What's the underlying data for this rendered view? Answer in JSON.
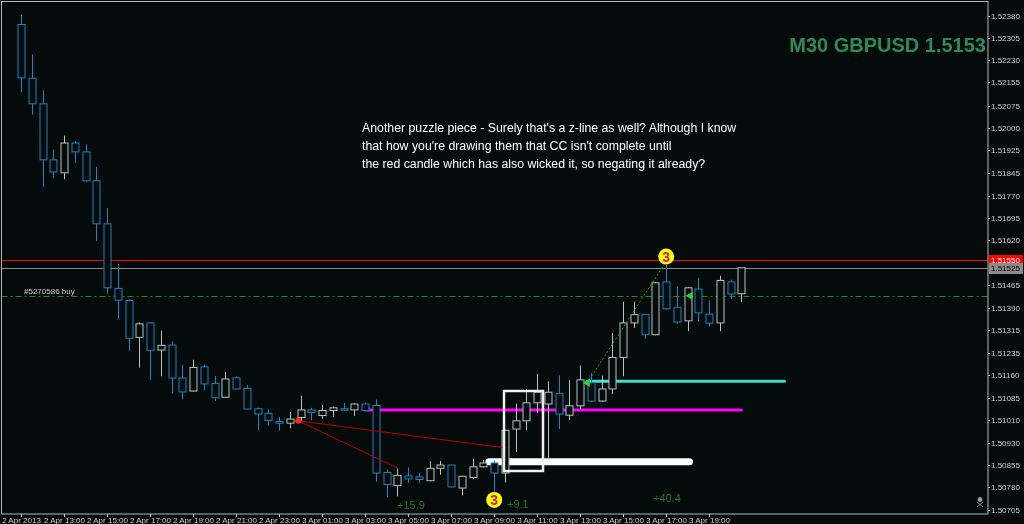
{
  "chart_data": {
    "type": "candlestick",
    "title": "M30 GBPUSD 1.5153",
    "series": [
      {
        "color": "#b4c4c4",
        "x": [
          "2013-04-02T13:00",
          "2013-04-02T16:30",
          "2013-04-02T17:30",
          "2013-04-02T19:00",
          "2013-04-02T20:30",
          "2013-04-02T23:30",
          "2013-04-03T00:00",
          "2013-04-03T01:00",
          "2013-04-03T01:30",
          "2013-04-03T02:30",
          "2013-04-03T04:30",
          "2013-04-03T06:00",
          "2013-04-03T06:30",
          "2013-04-03T07:30",
          "2013-04-03T08:00",
          "2013-04-03T08:30",
          "2013-04-03T09:30",
          "2013-04-03T10:00",
          "2013-04-03T10:30",
          "2013-04-03T11:00",
          "2013-04-03T11:30",
          "2013-04-03T12:30",
          "2013-04-03T13:00",
          "2013-04-03T14:00",
          "2013-04-03T14:30",
          "2013-04-03T15:00",
          "2013-04-03T15:30",
          "2013-04-03T16:30",
          "2013-04-03T18:00",
          "2013-04-03T19:30",
          "2013-04-03T20:30"
        ],
        "ohlc": [
          [
            1.51847,
            1.51973,
            1.51825,
            1.51948
          ],
          [
            1.51289,
            1.5134,
            1.51186,
            1.51335
          ],
          [
            1.51246,
            1.51312,
            1.51157,
            1.51262
          ],
          [
            1.51107,
            1.51213,
            1.51105,
            1.51187
          ],
          [
            1.51086,
            1.51172,
            1.51084,
            1.51148
          ],
          [
            1.50998,
            1.51036,
            1.50981,
            1.51012
          ],
          [
            1.51017,
            1.51091,
            1.51002,
            1.51043
          ],
          [
            1.51024,
            1.5106,
            1.51013,
            1.51041
          ],
          [
            1.51041,
            1.51055,
            1.5102,
            1.5105
          ],
          [
            1.51043,
            1.51065,
            1.51023,
            1.51063
          ],
          [
            1.50787,
            1.50845,
            1.5075,
            1.50821
          ],
          [
            1.50803,
            1.50869,
            1.50801,
            1.50845
          ],
          [
            1.50845,
            1.5087,
            1.50823,
            1.50856
          ],
          [
            1.50778,
            1.5082,
            1.50753,
            1.50818
          ],
          [
            1.50814,
            1.50877,
            1.50807,
            1.5085
          ],
          [
            1.5085,
            1.50874,
            1.50848,
            1.50863
          ],
          [
            1.50829,
            1.50976,
            1.50797,
            1.50974
          ],
          [
            1.50978,
            1.51064,
            1.509,
            1.51006
          ],
          [
            1.51006,
            1.51114,
            1.50974,
            1.51067
          ],
          [
            1.51067,
            1.51165,
            1.51033,
            1.51103
          ],
          [
            1.51063,
            1.5114,
            1.50874,
            1.51103
          ],
          [
            1.51025,
            1.51145,
            1.51009,
            1.51057
          ],
          [
            1.51057,
            1.51194,
            1.51046,
            1.51145
          ],
          [
            1.51073,
            1.51159,
            1.51071,
            1.51114
          ],
          [
            1.51114,
            1.51304,
            1.51097,
            1.51221
          ],
          [
            1.51221,
            1.5141,
            1.51157,
            1.51338
          ],
          [
            1.51338,
            1.5141,
            1.51321,
            1.51366
          ],
          [
            1.51298,
            1.51476,
            1.51296,
            1.51474
          ],
          [
            1.51345,
            1.5146,
            1.5131,
            1.51457
          ],
          [
            1.51338,
            1.51498,
            1.5131,
            1.51482
          ],
          [
            1.51437,
            1.51525,
            1.51409,
            1.51525
          ]
        ]
      },
      {
        "color": "#1a86c2",
        "x": [
          "2013-04-02T11:00",
          "2013-04-02T11:30",
          "2013-04-02T12:00",
          "2013-04-02T12:30",
          "2013-04-02T13:30",
          "2013-04-02T14:00",
          "2013-04-02T14:30",
          "2013-04-02T15:00",
          "2013-04-02T15:30",
          "2013-04-02T16:00",
          "2013-04-02T17:00",
          "2013-04-02T18:00",
          "2013-04-02T18:30",
          "2013-04-02T19:30",
          "2013-04-02T20:00",
          "2013-04-02T21:00",
          "2013-04-02T21:30",
          "2013-04-02T22:00",
          "2013-04-02T22:30",
          "2013-04-02T23:00",
          "2013-04-03T00:30",
          "2013-04-03T02:00",
          "2013-04-03T03:00",
          "2013-04-03T03:30",
          "2013-04-03T04:00",
          "2013-04-03T05:00",
          "2013-04-03T05:30",
          "2013-04-03T07:00",
          "2013-04-03T09:00",
          "2013-04-03T12:00",
          "2013-04-03T13:30",
          "2013-04-03T16:00",
          "2013-04-03T17:00",
          "2013-04-03T17:30",
          "2013-04-03T18:30",
          "2013-04-03T19:00",
          "2013-04-03T20:00"
        ],
        "ohlc": [
          [
            1.5235,
            1.52383,
            1.5212,
            1.52169
          ],
          [
            1.52168,
            1.52248,
            1.52044,
            1.52081
          ],
          [
            1.52081,
            1.52127,
            1.51798,
            1.51891
          ],
          [
            1.51891,
            1.51926,
            1.51828,
            1.5185
          ],
          [
            1.51948,
            1.51955,
            1.51879,
            1.51918
          ],
          [
            1.51918,
            1.51943,
            1.51815,
            1.5182
          ],
          [
            1.5182,
            1.51867,
            1.51615,
            1.51674
          ],
          [
            1.51674,
            1.51728,
            1.51437,
            1.51457
          ],
          [
            1.51455,
            1.51539,
            1.51352,
            1.51415
          ],
          [
            1.51414,
            1.51419,
            1.51242,
            1.51286
          ],
          [
            1.51338,
            1.5134,
            1.51145,
            1.51245
          ],
          [
            1.51263,
            1.51275,
            1.51099,
            1.51151
          ],
          [
            1.51151,
            1.51196,
            1.51079,
            1.51104
          ],
          [
            1.51189,
            1.51196,
            1.51109,
            1.51131
          ],
          [
            1.51133,
            1.51158,
            1.51073,
            1.51084
          ],
          [
            1.51152,
            1.51157,
            1.51113,
            1.51114
          ],
          [
            1.51116,
            1.51128,
            1.51045,
            1.51046
          ],
          [
            1.51047,
            1.51051,
            1.50974,
            1.51029
          ],
          [
            1.51031,
            1.51045,
            1.5099,
            1.51007
          ],
          [
            1.51004,
            1.51019,
            1.50973,
            1.50998
          ],
          [
            1.51043,
            1.5105,
            1.51007,
            1.51034
          ],
          [
            1.51047,
            1.51067,
            1.51041,
            1.51042
          ],
          [
            1.51063,
            1.51068,
            1.5104,
            1.51041
          ],
          [
            1.51058,
            1.51078,
            1.50799,
            1.50829
          ],
          [
            1.50831,
            1.50841,
            1.50747,
            1.5079
          ],
          [
            1.50819,
            1.50848,
            1.50795,
            1.50809
          ],
          [
            1.50816,
            1.50829,
            1.50794,
            1.50807
          ],
          [
            1.50856,
            1.50858,
            1.5078,
            1.50782
          ],
          [
            1.50863,
            1.50872,
            1.50765,
            1.50829
          ],
          [
            1.51099,
            1.5116,
            1.50978,
            1.51029
          ],
          [
            1.51135,
            1.51168,
            1.51069,
            1.51073
          ],
          [
            1.51367,
            1.51369,
            1.51284,
            1.51298
          ],
          [
            1.51477,
            1.51536,
            1.51383,
            1.51386
          ],
          [
            1.51391,
            1.51462,
            1.51335,
            1.51341
          ],
          [
            1.51453,
            1.51491,
            1.51343,
            1.51372
          ],
          [
            1.51368,
            1.51414,
            1.51326,
            1.51337
          ],
          [
            1.51477,
            1.51485,
            1.51419,
            1.51436
          ]
        ]
      },
      {
        "type": "line",
        "color": "#ff00ff",
        "x": [
          "2013-04-03T03:00",
          "2013-04-03T20:30"
        ],
        "values": [
          1.51043,
          1.51043
        ]
      },
      {
        "type": "line",
        "color": "#40e0d0",
        "x": [
          "2013-04-03T13:20",
          "2013-04-03T22:30"
        ],
        "values": [
          1.5114,
          1.5114
        ]
      },
      {
        "type": "line",
        "color": "#ffffff",
        "x": [
          "2013-04-03T08:45",
          "2013-04-03T18:05"
        ],
        "values": [
          1.50867,
          1.50867
        ]
      },
      {
        "type": "line",
        "color": "#c00000",
        "x": [
          "2013-04-02T23:53",
          "2013-04-03T09:32"
        ],
        "values": [
          1.51006,
          1.50914
        ]
      },
      {
        "type": "line",
        "color": "#c00000",
        "x": [
          "2013-04-02T23:53",
          "2013-04-03T04:32"
        ],
        "values": [
          1.51006,
          1.50845
        ]
      },
      {
        "type": "line",
        "color": "#1f9f1f",
        "line_style": "dotted",
        "x": [
          "2013-04-03T13:20",
          "2013-04-03T16:54"
        ],
        "values": [
          1.51135,
          1.51536
        ]
      },
      {
        "type": "scatter",
        "color": "#ff2020",
        "marker": "circle",
        "x": [
          "2013-04-02T23:53"
        ],
        "values": [
          1.51006
        ]
      },
      {
        "type": "scatter",
        "color": "#2ecc40",
        "marker": "triangle",
        "x": [
          "2013-04-03T13:20",
          "2013-04-03T18:07"
        ],
        "values": [
          1.51135,
          1.5143
        ]
      }
    ],
    "xlim": [
      "2013-04-02T10:05",
      "2013-04-04T07:58"
    ],
    "xticks": [
      {
        "value": "2013-04-02T11:00",
        "label": "2 Apr 2013"
      },
      {
        "value": "2013-04-02T13:00",
        "label": "2 Apr 13:00"
      },
      {
        "value": "2013-04-02T15:00",
        "label": "2 Apr 15:00"
      },
      {
        "value": "2013-04-02T17:00",
        "label": "2 Apr 17:00"
      },
      {
        "value": "2013-04-02T19:00",
        "label": "2 Apr 19:00"
      },
      {
        "value": "2013-04-02T21:00",
        "label": "2 Apr 21:00"
      },
      {
        "value": "2013-04-02T23:00",
        "label": "2 Apr 23:00"
      },
      {
        "value": "2013-04-03T01:00",
        "label": "3 Apr 01:00"
      },
      {
        "value": "2013-04-03T03:00",
        "label": "3 Apr 03:00"
      },
      {
        "value": "2013-04-03T05:00",
        "label": "3 Apr 05:00"
      },
      {
        "value": "2013-04-03T07:00",
        "label": "3 Apr 07:00"
      },
      {
        "value": "2013-04-03T09:00",
        "label": "3 Apr 09:00"
      },
      {
        "value": "2013-04-03T11:00",
        "label": "3 Apr 11:00"
      },
      {
        "value": "2013-04-03T13:00",
        "label": "3 Apr 13:00"
      },
      {
        "value": "2013-04-03T15:00",
        "label": "3 Apr 15:00"
      },
      {
        "value": "2013-04-03T17:00",
        "label": "3 Apr 17:00"
      },
      {
        "value": "2013-04-03T19:00",
        "label": "3 Apr 19:00"
      }
    ],
    "ylim": [
      1.5069,
      1.52428
    ],
    "yticks": [
      {
        "value": 1.5238,
        "label": "1.52380"
      },
      {
        "value": 1.52305,
        "label": "1.52305"
      },
      {
        "value": 1.5223,
        "label": "1.52230"
      },
      {
        "value": 1.52155,
        "label": "1.52155"
      },
      {
        "value": 1.52075,
        "label": "1.52075"
      },
      {
        "value": 1.52,
        "label": "1.52000"
      },
      {
        "value": 1.51925,
        "label": "1.51925"
      },
      {
        "value": 1.51845,
        "label": "1.51845"
      },
      {
        "value": 1.5177,
        "label": "1.51770"
      },
      {
        "value": 1.51695,
        "label": "1.51695"
      },
      {
        "value": 1.5162,
        "label": "1.51620"
      },
      {
        "value": 1.51465,
        "label": "1.51465"
      },
      {
        "value": 1.5139,
        "label": "1.51390"
      },
      {
        "value": 1.51315,
        "label": "1.51315"
      },
      {
        "value": 1.51235,
        "label": "1.51235"
      },
      {
        "value": 1.5116,
        "label": "1.51160"
      },
      {
        "value": 1.51085,
        "label": "1.51085"
      },
      {
        "value": 1.5101,
        "label": "1.51010"
      },
      {
        "value": 1.5093,
        "label": "1.50930"
      },
      {
        "value": 1.50855,
        "label": "1.50855"
      },
      {
        "value": 1.5078,
        "label": "1.50780"
      },
      {
        "value": 1.50705,
        "label": "1.50705"
      }
    ],
    "ref_lines": [
      {
        "axis": "y",
        "value": 1.5155,
        "label": "1.51550",
        "color": "#ff0000"
      },
      {
        "axis": "y",
        "value": 1.51525,
        "label": "1.51525",
        "color": "#8a8a8a"
      },
      {
        "axis": "y",
        "value": 1.5143,
        "label": "#5270586 buy",
        "color": "#1e8c1e",
        "line_style": "dashed"
      }
    ],
    "annotations": [
      "Another puzzle piece - Surely that's a z-line as well? Although I know\nthat how you're drawing them that CC isn't complete until\nthe red candle which has also wicked it, so negating it already?",
      "+15.9",
      "+9.1",
      "+40.4",
      {
        "text": "3",
        "x": "2013-04-03T09:00",
        "y": 1.50765
      },
      {
        "text": "3",
        "x": "2013-04-03T17:00",
        "y": 1.51536
      }
    ]
  }
}
